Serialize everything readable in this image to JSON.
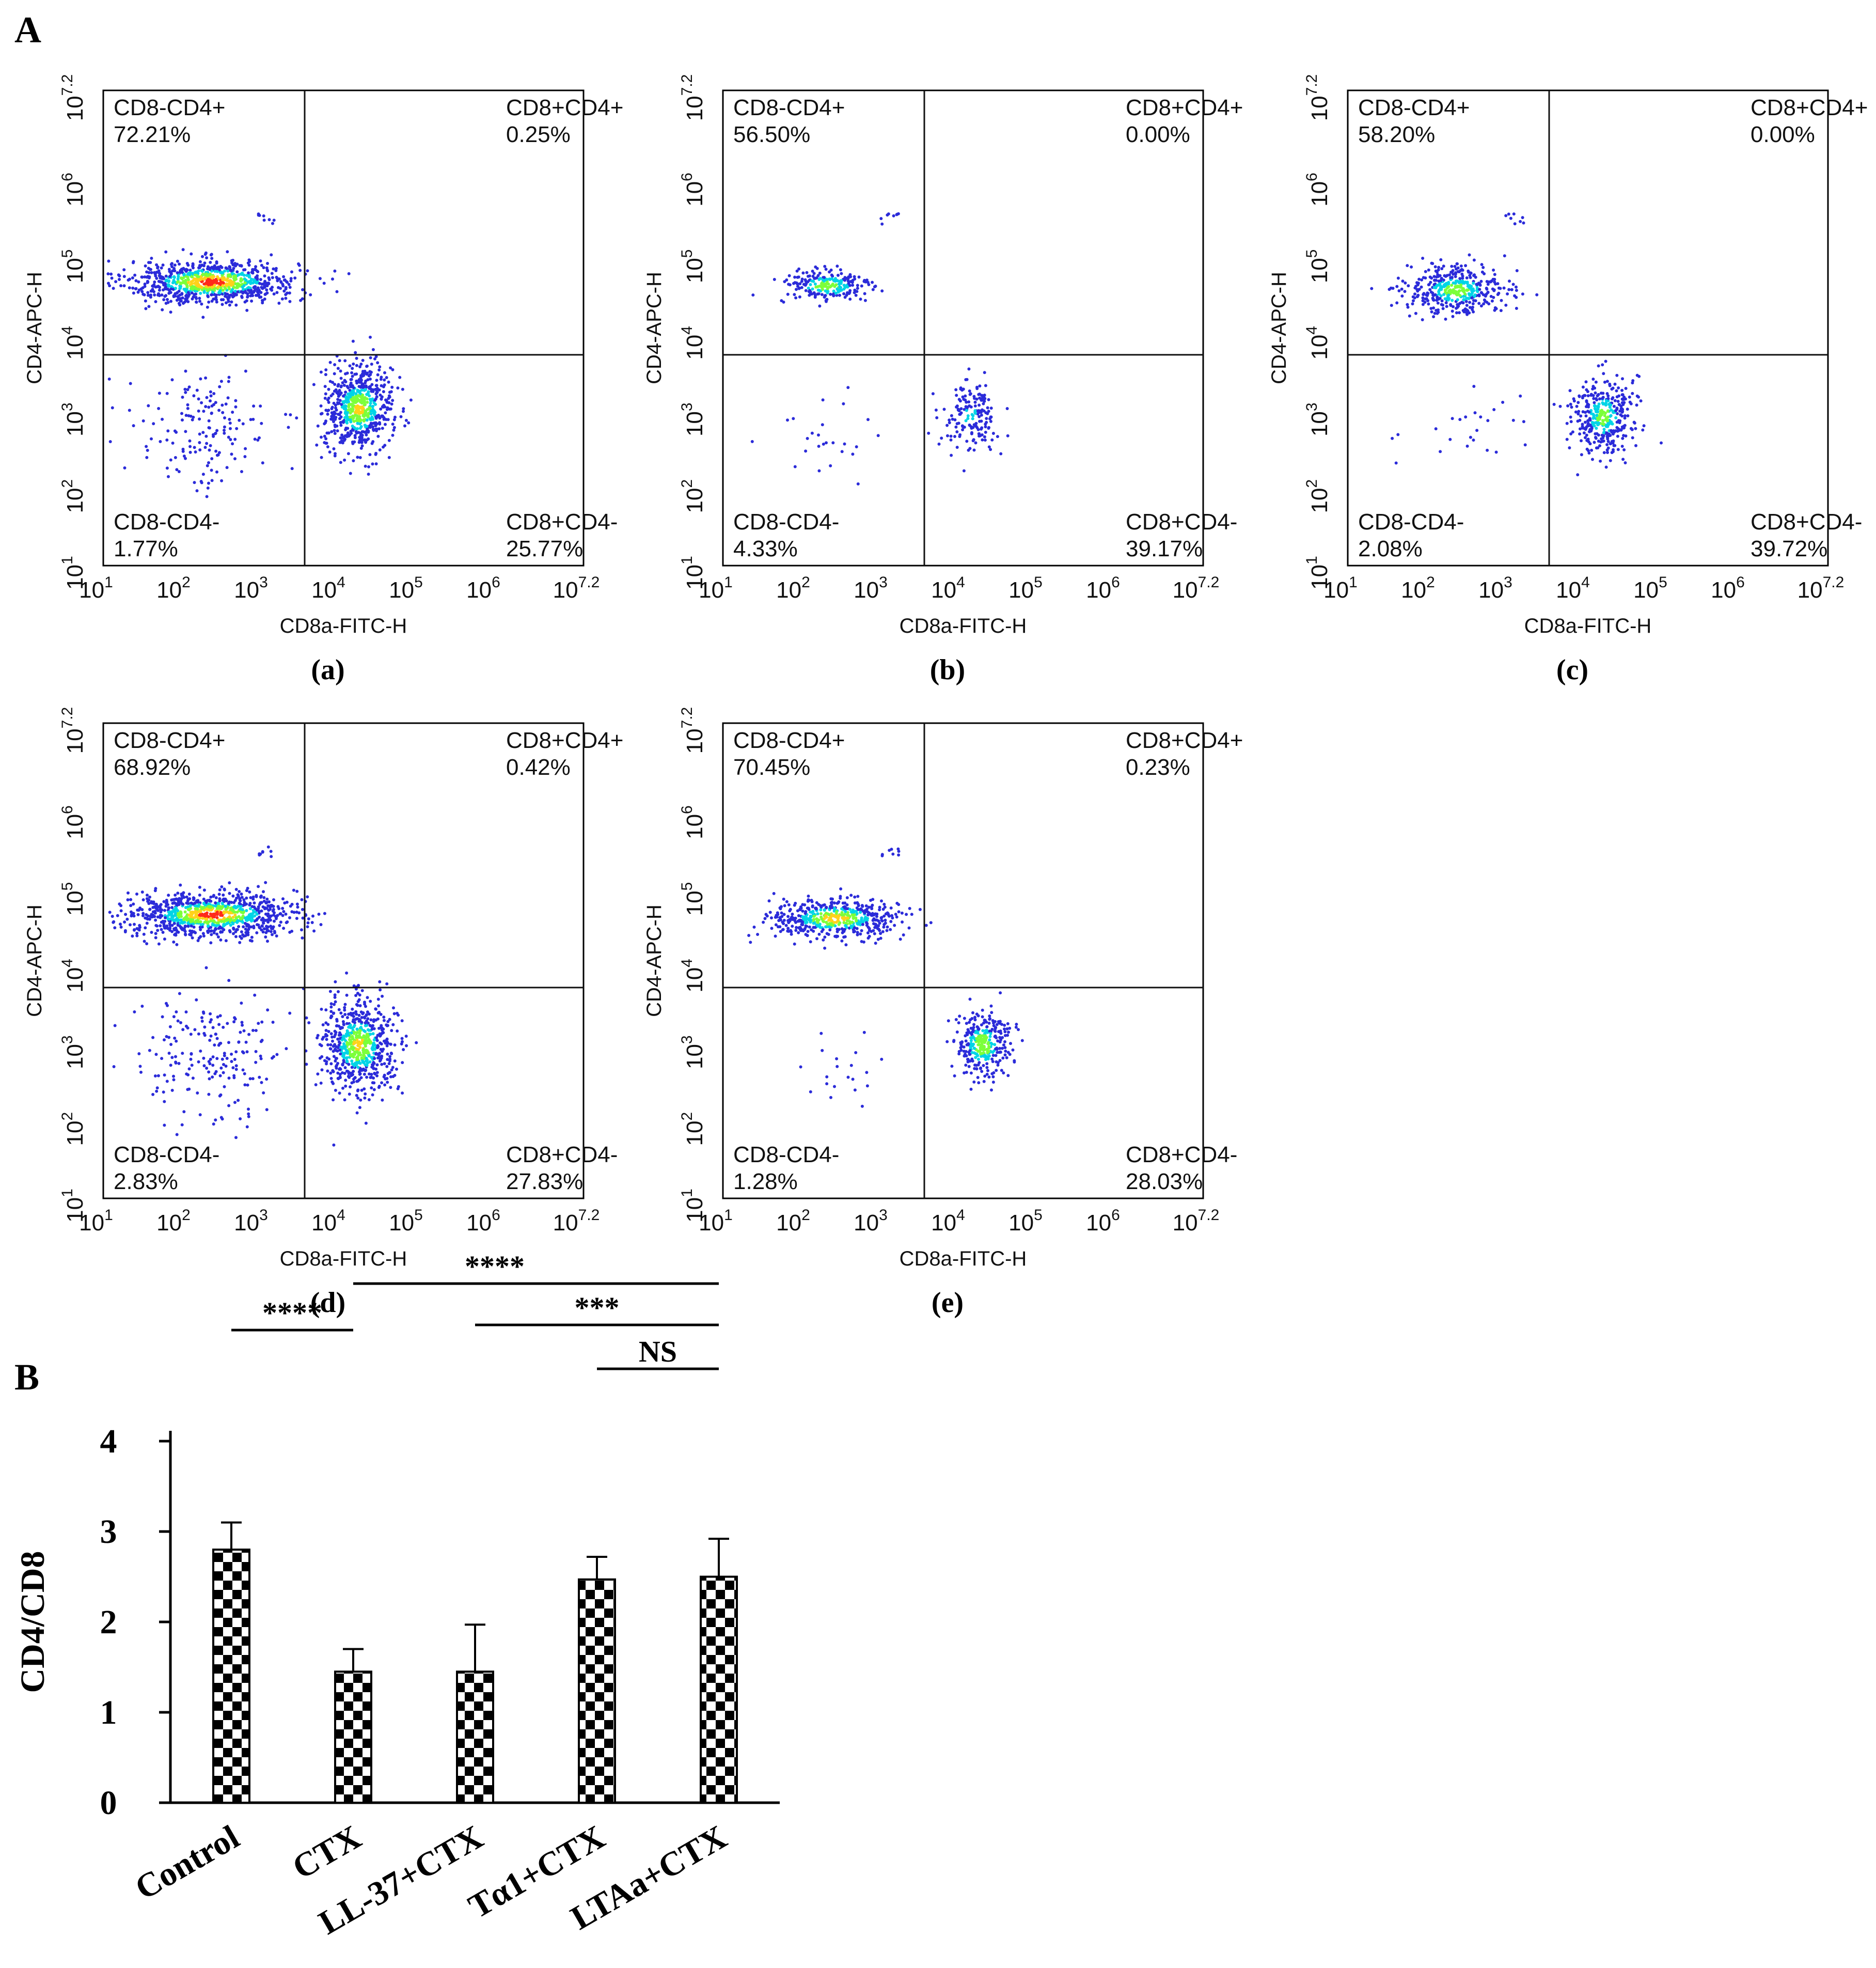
{
  "figure": {
    "panel_A_label": "A",
    "panel_B_label": "B"
  },
  "colors": {
    "density_low": "#2b2bd9",
    "density_mid": "#00d4e6",
    "density_high": "#7cff3a",
    "density_peak": "#ff2a1a",
    "axes": "#000000"
  },
  "chart_data": [
    {
      "type": "scatter",
      "sublabel": "(a)",
      "xlabel": "CD8a-FITC-H",
      "ylabel": "CD4-APC-H",
      "xscale": "log",
      "yscale": "log",
      "xlim": [
        1,
        7.2
      ],
      "ylim": [
        1,
        7.2
      ],
      "tick_labels": [
        "10^1",
        "10^2",
        "10^3",
        "10^4",
        "10^5",
        "10^6",
        "10^7.2"
      ],
      "gate": {
        "x": 3.6,
        "y": 3.75
      },
      "quadrants": [
        {
          "label": "CD8-CD4+",
          "percent": "72.21%"
        },
        {
          "label": "CD8+CD4+",
          "percent": "0.25%"
        },
        {
          "label": "CD8-CD4-",
          "percent": "1.77%"
        },
        {
          "label": "CD8+CD4-",
          "percent": "25.77%"
        }
      ],
      "populations": [
        {
          "x": 2.4,
          "y": 4.7,
          "sx": 0.55,
          "sy": 0.14,
          "n": 900,
          "peak": 1.0
        },
        {
          "x": 4.3,
          "y": 3.05,
          "sx": 0.22,
          "sy": 0.28,
          "n": 650,
          "peak": 0.85
        },
        {
          "x": 2.3,
          "y": 2.8,
          "sx": 0.45,
          "sy": 0.4,
          "n": 160,
          "peak": 0.0
        }
      ]
    },
    {
      "type": "scatter",
      "sublabel": "(b)",
      "xlabel": "CD8a-FITC-H",
      "ylabel": "CD4-APC-H",
      "xscale": "log",
      "yscale": "log",
      "xlim": [
        1,
        7.2
      ],
      "ylim": [
        1,
        7.2
      ],
      "tick_labels": [
        "10^1",
        "10^2",
        "10^3",
        "10^4",
        "10^5",
        "10^6",
        "10^7.2"
      ],
      "gate": {
        "x": 3.6,
        "y": 3.75
      },
      "quadrants": [
        {
          "label": "CD8-CD4+",
          "percent": "56.50%"
        },
        {
          "label": "CD8+CD4+",
          "percent": "0.00%"
        },
        {
          "label": "CD8-CD4-",
          "percent": "4.33%"
        },
        {
          "label": "CD8+CD4-",
          "percent": "39.17%"
        }
      ],
      "populations": [
        {
          "x": 2.35,
          "y": 4.65,
          "sx": 0.3,
          "sy": 0.12,
          "n": 220,
          "peak": 0.75
        },
        {
          "x": 4.2,
          "y": 2.95,
          "sx": 0.18,
          "sy": 0.22,
          "n": 170,
          "peak": 0.5
        },
        {
          "x": 2.3,
          "y": 2.6,
          "sx": 0.35,
          "sy": 0.35,
          "n": 25,
          "peak": 0.0
        }
      ]
    },
    {
      "type": "scatter",
      "sublabel": "(c)",
      "xlabel": "CD8a-FITC-H",
      "ylabel": "CD4-APC-H",
      "xscale": "log",
      "yscale": "log",
      "xlim": [
        1,
        7.2
      ],
      "ylim": [
        1,
        7.2
      ],
      "tick_labels": [
        "10^1",
        "10^2",
        "10^3",
        "10^4",
        "10^5",
        "10^6",
        "10^7.2"
      ],
      "gate": {
        "x": 3.6,
        "y": 3.75
      },
      "quadrants": [
        {
          "label": "CD8-CD4+",
          "percent": "58.20%"
        },
        {
          "label": "CD8+CD4+",
          "percent": "0.00%"
        },
        {
          "label": "CD8-CD4-",
          "percent": "2.08%"
        },
        {
          "label": "CD8+CD4-",
          "percent": "39.72%"
        }
      ],
      "populations": [
        {
          "x": 2.4,
          "y": 4.6,
          "sx": 0.33,
          "sy": 0.16,
          "n": 420,
          "peak": 0.75
        },
        {
          "x": 4.3,
          "y": 2.95,
          "sx": 0.2,
          "sy": 0.26,
          "n": 380,
          "peak": 0.7
        },
        {
          "x": 2.5,
          "y": 2.8,
          "sx": 0.45,
          "sy": 0.25,
          "n": 25,
          "peak": 0.0
        }
      ]
    },
    {
      "type": "scatter",
      "sublabel": "(d)",
      "xlabel": "CD8a-FITC-H",
      "ylabel": "CD4-APC-H",
      "xscale": "log",
      "yscale": "log",
      "xlim": [
        1,
        7.2
      ],
      "ylim": [
        1,
        7.2
      ],
      "tick_labels": [
        "10^1",
        "10^2",
        "10^3",
        "10^4",
        "10^5",
        "10^6",
        "10^7.2"
      ],
      "gate": {
        "x": 3.6,
        "y": 3.75
      },
      "quadrants": [
        {
          "label": "CD8-CD4+",
          "percent": "68.92%"
        },
        {
          "label": "CD8+CD4+",
          "percent": "0.42%"
        },
        {
          "label": "CD8-CD4-",
          "percent": "2.83%"
        },
        {
          "label": "CD8+CD4-",
          "percent": "27.83%"
        }
      ],
      "populations": [
        {
          "x": 2.4,
          "y": 4.7,
          "sx": 0.55,
          "sy": 0.14,
          "n": 950,
          "peak": 1.0
        },
        {
          "x": 4.3,
          "y": 3.0,
          "sx": 0.24,
          "sy": 0.3,
          "n": 650,
          "peak": 0.85
        },
        {
          "x": 2.4,
          "y": 2.8,
          "sx": 0.5,
          "sy": 0.42,
          "n": 200,
          "peak": 0.0
        }
      ]
    },
    {
      "type": "scatter",
      "sublabel": "(e)",
      "xlabel": "CD8a-FITC-H",
      "ylabel": "CD4-APC-H",
      "xscale": "log",
      "yscale": "log",
      "xlim": [
        1,
        7.2
      ],
      "ylim": [
        1,
        7.2
      ],
      "tick_labels": [
        "10^1",
        "10^2",
        "10^3",
        "10^4",
        "10^5",
        "10^6",
        "10^7.2"
      ],
      "gate": {
        "x": 3.6,
        "y": 3.75
      },
      "quadrants": [
        {
          "label": "CD8-CD4+",
          "percent": "70.45%"
        },
        {
          "label": "CD8+CD4+",
          "percent": "0.23%"
        },
        {
          "label": "CD8-CD4-",
          "percent": "1.28%"
        },
        {
          "label": "CD8+CD4-",
          "percent": "28.03%"
        }
      ],
      "populations": [
        {
          "x": 2.45,
          "y": 4.65,
          "sx": 0.42,
          "sy": 0.13,
          "n": 520,
          "peak": 0.9
        },
        {
          "x": 4.35,
          "y": 3.0,
          "sx": 0.18,
          "sy": 0.22,
          "n": 330,
          "peak": 0.8
        },
        {
          "x": 2.5,
          "y": 2.6,
          "sx": 0.35,
          "sy": 0.25,
          "n": 20,
          "peak": 0.0
        }
      ]
    },
    {
      "type": "bar",
      "ylabel": "CD4/CD8",
      "categories": [
        "Control",
        "CTX",
        "LL-37+CTX",
        "Tα1+CTX",
        "LTAa+CTX"
      ],
      "values": [
        2.8,
        1.45,
        1.45,
        2.47,
        2.5
      ],
      "errors": [
        0.3,
        0.25,
        0.52,
        0.25,
        0.42
      ],
      "ylim": [
        0,
        4
      ],
      "yticks": [
        "0",
        "1",
        "2",
        "3",
        "4"
      ],
      "fill_pattern": "checkerboard",
      "significance": [
        {
          "from": 0,
          "to": 1,
          "label": "****"
        },
        {
          "from": 1,
          "to": 4,
          "label": "****"
        },
        {
          "from": 2,
          "to": 4,
          "label": "***"
        },
        {
          "from": 3,
          "to": 4,
          "label": "NS"
        }
      ]
    }
  ]
}
